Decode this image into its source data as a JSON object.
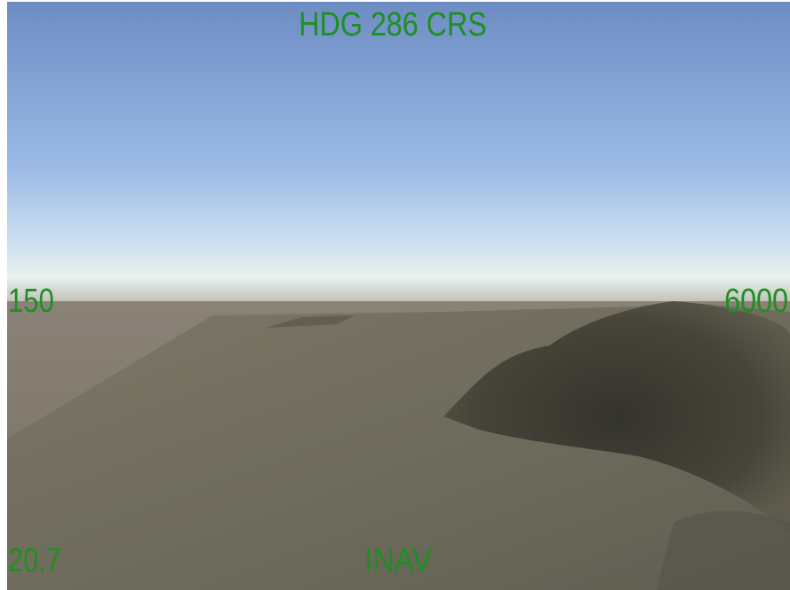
{
  "hud": {
    "heading": "HDG 286 CRS",
    "airspeed": "150",
    "altitude": "6000",
    "range": "20.7",
    "mode": "INAV"
  }
}
